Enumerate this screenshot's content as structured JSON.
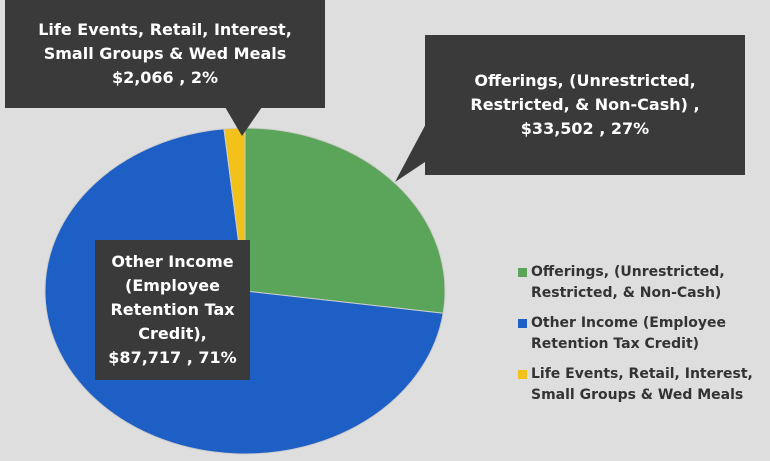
{
  "chart_data": {
    "type": "pie",
    "categories": [
      "Offerings, (Unrestricted, Restricted, & Non-Cash)",
      "Other Income (Employee Retention Tax Credit)",
      "Life Events, Retail, Interest, Small Groups & Wed Meals"
    ],
    "values": [
      33502,
      87717,
      2066
    ],
    "value_labels": [
      "Offerings, (Unrestricted, Restricted, & Non-Cash) , $33,502 , 27%",
      "Other Income (Employee Retention Tax Credit), $87,717 , 71%",
      "Life Events, Retail, Interest, Small Groups & Wed Meals $2,066 , 2%"
    ],
    "colors": [
      "#5aa55a",
      "#1e5fc6",
      "#f2c21a"
    ],
    "legend": "right"
  }
}
